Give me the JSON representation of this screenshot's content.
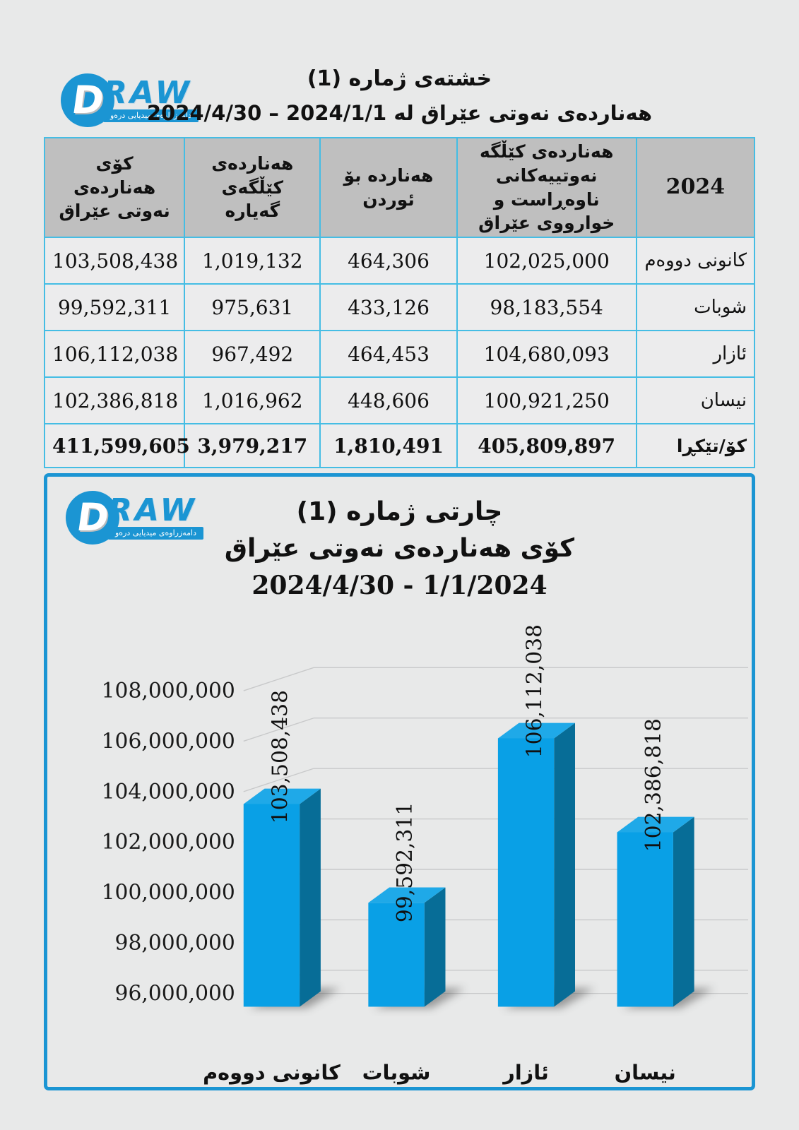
{
  "page_bg": "#e8e9e9",
  "logo": {
    "monogram": "D",
    "wordmark": "RAW",
    "tagline": "دامەزراوەی میدیایی درەو",
    "brand_color": "#1b95d3"
  },
  "header": {
    "title": "خشتەی ژمارە (1)",
    "subtitle": "هەناردەی نەوتی عێراق له 2024/1/1 – 2024/4/30"
  },
  "table": {
    "columns": [
      "2024",
      "هەناردەی کێڵگه نەوتییەکانی ناوەڕاست و خوارووی عێراق",
      "هەنارده بۆ ئوردن",
      "هەناردەی کێڵگەی گەیاره",
      "کۆی هەناردەی نەوتی عێراق"
    ],
    "rows": [
      {
        "month": "كانونی دووەم",
        "values": [
          "102,025,000",
          "464,306",
          "1,019,132",
          "103,508,438"
        ]
      },
      {
        "month": "شوبات",
        "values": [
          "98,183,554",
          "433,126",
          "975,631",
          "99,592,311"
        ]
      },
      {
        "month": "ئازار",
        "values": [
          "104,680,093",
          "464,453",
          "967,492",
          "106,112,038"
        ]
      },
      {
        "month": "نیسان",
        "values": [
          "100,921,250",
          "448,606",
          "1,016,962",
          "102,386,818"
        ]
      }
    ],
    "total": {
      "label": "کۆ/تێکڕا",
      "values": [
        "405,809,897",
        "1,810,491",
        "3,979,217",
        "411,599,605"
      ]
    }
  },
  "chart_data": {
    "type": "bar",
    "style": "3d",
    "title_lines": [
      "چارتی ژماره (1)",
      "کۆی هەناردەی نەوتی عێراق",
      "1/1/2024 - 2024/4/30"
    ],
    "categories": [
      "كانونی دووەم",
      "شوبات",
      "ئازار",
      "نیسان"
    ],
    "values": [
      103508438,
      99592311,
      106112038,
      102386818
    ],
    "data_labels": [
      "103,508,438",
      "99,592,311",
      "106,112,038",
      "102,386,818"
    ],
    "ylim": [
      96000000,
      108000000
    ],
    "ytick_step": 2000000,
    "grid": true,
    "legend": false,
    "bar_color_front": "#09a0e6",
    "bar_color_top": "#1fa9e8",
    "bar_color_side": "#076d97",
    "gridline_color": "#c8c9ca",
    "shadow_color": "#4a4a4a",
    "border_color": "#1b95d3"
  }
}
